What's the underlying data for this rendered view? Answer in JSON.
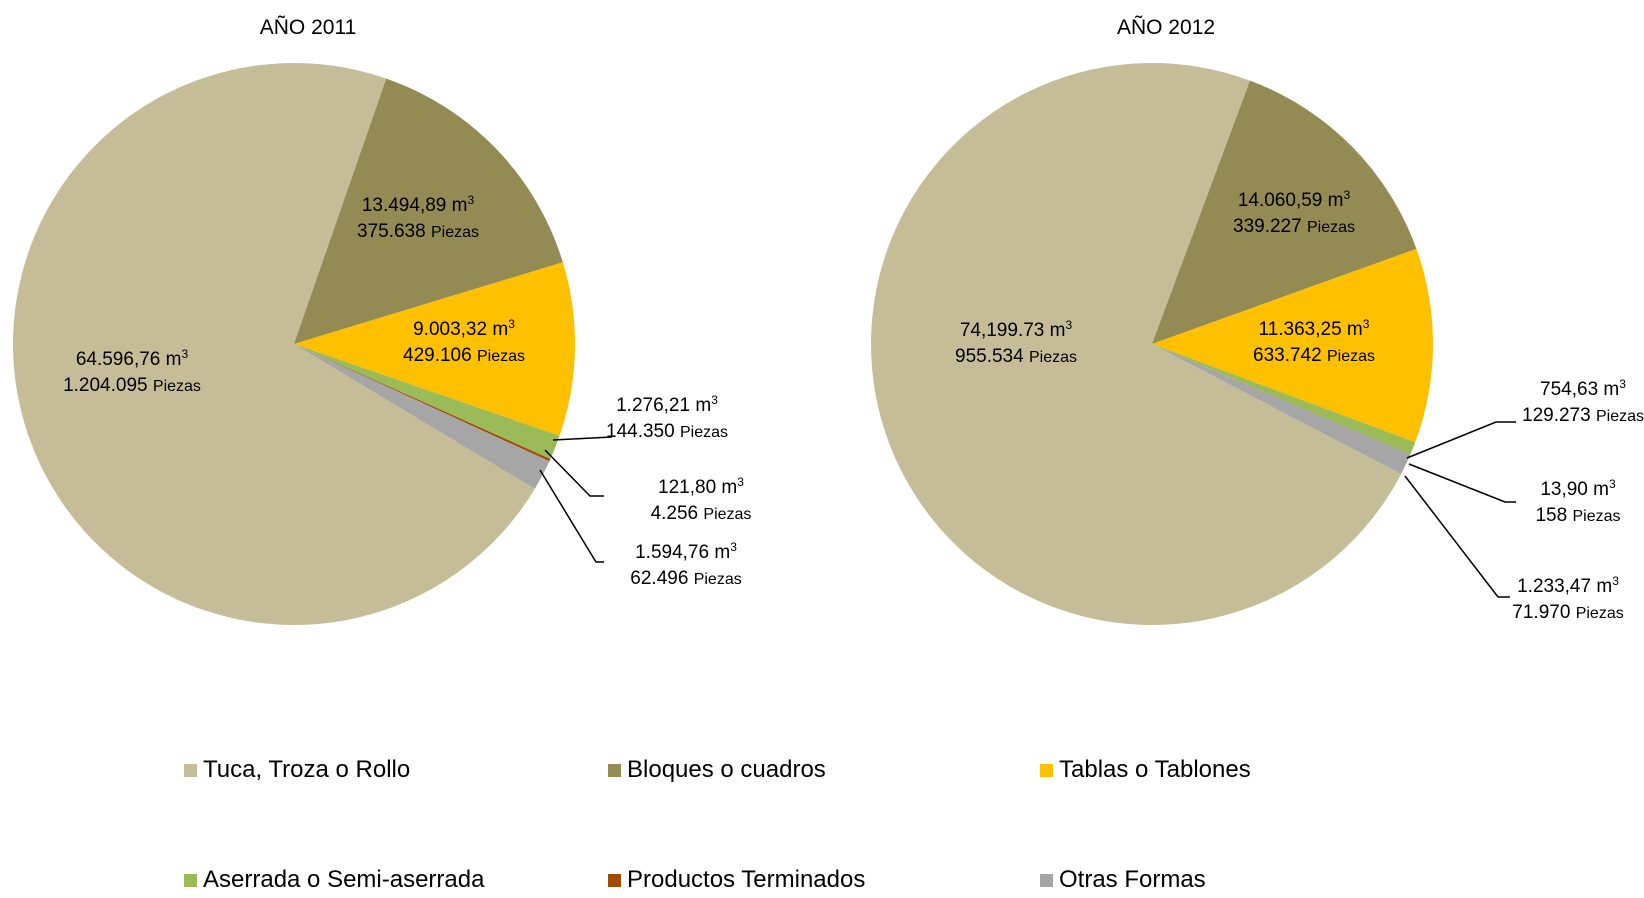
{
  "chart_data": [
    {
      "type": "pie",
      "title": "AÑO 2011",
      "slices": [
        {
          "category": "Tuca, Troza o Rollo",
          "volume_m3": 64596.76,
          "pieces": 1204095,
          "volume_label": "64.596,76 m",
          "pieces_label": "1.204.095",
          "unit_label": "Piezas"
        },
        {
          "category": "Bloques o cuadros",
          "volume_m3": 13494.89,
          "pieces": 375638,
          "volume_label": "13.494,89 m",
          "pieces_label": "375.638",
          "unit_label": "Piezas"
        },
        {
          "category": "Tablas o Tablones",
          "volume_m3": 9003.32,
          "pieces": 429106,
          "volume_label": "9.003,32 m",
          "pieces_label": "429.106",
          "unit_label": "Piezas"
        },
        {
          "category": "Aserrada o Semi-aserrada",
          "volume_m3": 1276.21,
          "pieces": 144350,
          "volume_label": "1.276,21 m",
          "pieces_label": "144.350",
          "unit_label": "Piezas"
        },
        {
          "category": "Productos Terminados",
          "volume_m3": 121.8,
          "pieces": 4256,
          "volume_label": "121,80 m",
          "pieces_label": "4.256",
          "unit_label": "Piezas"
        },
        {
          "category": "Otras Formas",
          "volume_m3": 1594.76,
          "pieces": 62496,
          "volume_label": "1.594,76 m",
          "pieces_label": "62.496",
          "unit_label": "Piezas"
        }
      ]
    },
    {
      "type": "pie",
      "title": "AÑO 2012",
      "slices": [
        {
          "category": "Tuca, Troza o Rollo",
          "volume_m3": 74199.73,
          "pieces": 955534,
          "volume_label": "74,199.73 m",
          "pieces_label": "955.534",
          "unit_label": "Piezas"
        },
        {
          "category": "Bloques o cuadros",
          "volume_m3": 14060.59,
          "pieces": 339227,
          "volume_label": "14.060,59 m",
          "pieces_label": "339.227",
          "unit_label": "Piezas"
        },
        {
          "category": "Tablas o Tablones",
          "volume_m3": 11363.25,
          "pieces": 633742,
          "volume_label": "11.363,25 m",
          "pieces_label": "633.742",
          "unit_label": "Piezas"
        },
        {
          "category": "Aserrada o Semi-aserrada",
          "volume_m3": 754.63,
          "pieces": 129273,
          "volume_label": "754,63 m",
          "pieces_label": "129.273",
          "unit_label": "Piezas"
        },
        {
          "category": "Productos Terminados",
          "volume_m3": 13.9,
          "pieces": 158,
          "volume_label": "13,90 m",
          "pieces_label": "158",
          "unit_label": "Piezas"
        },
        {
          "category": "Otras Formas",
          "volume_m3": 1233.47,
          "pieces": 71970,
          "volume_label": "1.233,47 m",
          "pieces_label": "71.970",
          "unit_label": "Piezas"
        }
      ]
    }
  ],
  "unit_superscript": "3",
  "legend": {
    "placement": "bottom",
    "items": [
      {
        "label": "Tuca, Troza o Rollo",
        "color": "#C4BD97"
      },
      {
        "label": "Bloques o cuadros",
        "color": "#948A54"
      },
      {
        "label": "Tablas o Tablones",
        "color": "#FFC000"
      },
      {
        "label": "Aserrada o Semi-aserrada",
        "color": "#9BBB59"
      },
      {
        "label": "Productos Terminados",
        "color": "#A14B00"
      },
      {
        "label": "Otras Formas",
        "color": "#A6A6A6"
      }
    ]
  }
}
